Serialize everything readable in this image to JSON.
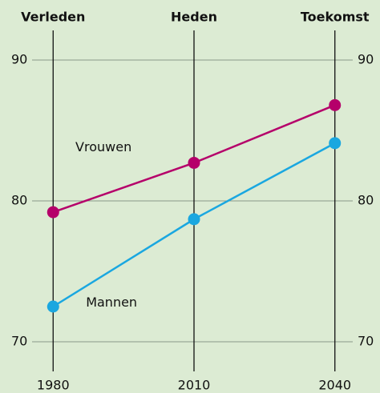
{
  "chart_data": {
    "type": "line",
    "annotations": [
      {
        "text": "Verleden",
        "x": 1980
      },
      {
        "text": "Heden",
        "x": 2010
      },
      {
        "text": "Toekomst",
        "x": 2040
      }
    ],
    "x": [
      1980,
      2010,
      2040
    ],
    "series": [
      {
        "name": "Vrouwen",
        "color": "#b5006a",
        "values": [
          79.2,
          82.7,
          86.8
        ]
      },
      {
        "name": "Mannen",
        "color": "#1aa7e0",
        "values": [
          72.5,
          78.7,
          84.1
        ]
      }
    ],
    "xlim": [
      1970,
      2050
    ],
    "xticks": [
      1980,
      2010,
      2040
    ],
    "ylim": [
      70,
      90
    ],
    "yticks": [
      70,
      80,
      90
    ],
    "grid": true
  }
}
